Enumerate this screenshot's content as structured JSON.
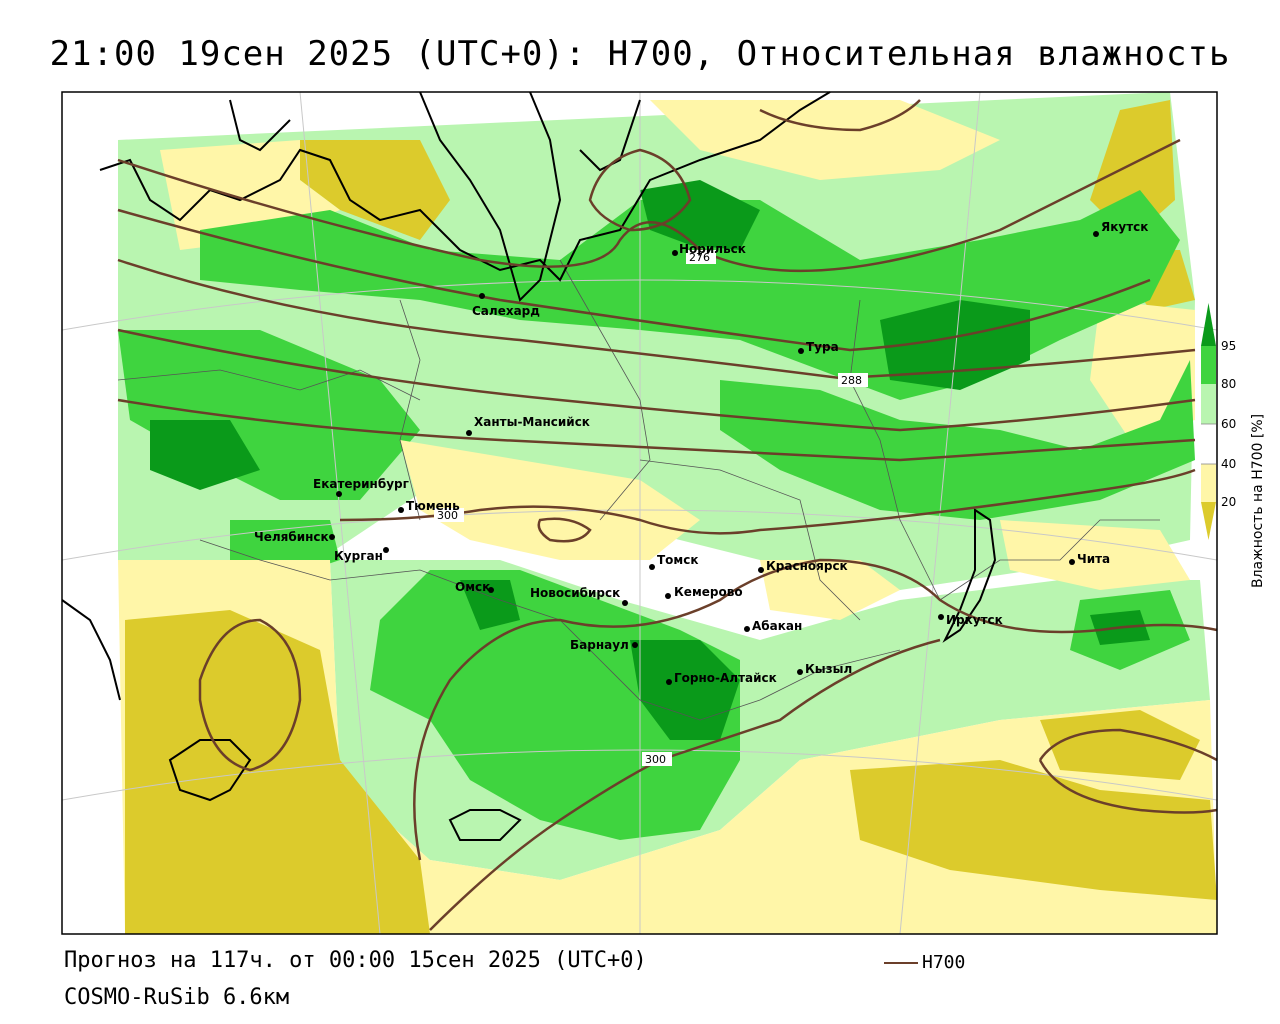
{
  "title": "21:00 19сен 2025 (UTC+0): H700, Относительная влажность",
  "footer": {
    "forecast": "Прогноз на 117ч. от 00:00 15сен 2025 (UTC+0)",
    "model": "COSMO-RuSib 6.6км",
    "line_legend": "H700"
  },
  "colorbar": {
    "label": "Влажность на H700 [%]",
    "ticks": [
      "95",
      "80",
      "60",
      "40",
      "20"
    ],
    "colors": {
      "dark_green": "#0a9a1a",
      "green": "#3fd43f",
      "light_green": "#b9f5b0",
      "white": "#ffffff",
      "pale_yellow": "#fff6a8",
      "olive": "#dccb2c"
    }
  },
  "cities": [
    {
      "name": "Якутск"
    },
    {
      "name": "Норильск"
    },
    {
      "name": "Салехард"
    },
    {
      "name": "Тура"
    },
    {
      "name": "Ханты-Мансийск"
    },
    {
      "name": "Екатеринбург"
    },
    {
      "name": "Тюмень"
    },
    {
      "name": "Челябинск"
    },
    {
      "name": "Курган"
    },
    {
      "name": "Томск"
    },
    {
      "name": "Красноярск"
    },
    {
      "name": "Чита"
    },
    {
      "name": "Омск"
    },
    {
      "name": "Новосибирск"
    },
    {
      "name": "Кемерово"
    },
    {
      "name": "Абакан"
    },
    {
      "name": "Иркутск"
    },
    {
      "name": "Барнаул"
    },
    {
      "name": "Горно-Алтайск"
    },
    {
      "name": "Кызыл"
    }
  ],
  "isolines": [
    "276",
    "288",
    "300",
    "300"
  ]
}
